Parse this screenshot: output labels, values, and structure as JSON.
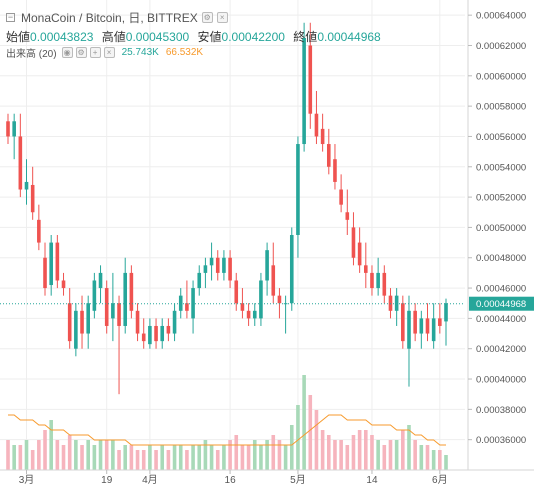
{
  "header": {
    "symbol": "MonaCoin / Bitcoin, 日, BITTREX",
    "minimize_glyph": "−",
    "toolbar_icons": [
      "settings-icon",
      "close-icon"
    ]
  },
  "ohlc": {
    "open_label": "始値",
    "open_value": "0.00043823",
    "high_label": "高値",
    "high_value": "0.00045300",
    "low_label": "安値",
    "low_value": "0.00042200",
    "close_label": "終値",
    "close_value": "0.00044968"
  },
  "volume_legend": {
    "label": "出来高 (20)",
    "value_volume": "25.743K",
    "value_ma": "66.532K",
    "buttons": [
      "eye-icon",
      "settings-icon",
      "plus-icon",
      "close-icon"
    ]
  },
  "price_axis": {
    "ticks": [
      "0.00064000",
      "0.00062000",
      "0.00060000",
      "0.00058000",
      "0.00056000",
      "0.00054000",
      "0.00052000",
      "0.00050000",
      "0.00048000",
      "0.00046000",
      "0.00044000",
      "0.00042000",
      "0.00040000",
      "0.00038000",
      "0.00036000"
    ],
    "current_price": "0.00044968"
  },
  "time_axis": {
    "ticks": [
      "3月",
      "19",
      "4月",
      "16",
      "5月",
      "14",
      "6月"
    ]
  },
  "colors": {
    "up": "#26a69a",
    "down": "#ef5350",
    "up_vol": "#a8d9b8",
    "down_vol": "#f6b4bd",
    "ma_line": "#f79a2c",
    "price_line": "#26a69a",
    "grid": "#eeeeee"
  },
  "chart_data": {
    "type": "candlestick",
    "price_range": [
      0.00034,
      0.00065
    ],
    "candles": [
      {
        "o": 0.00057,
        "h": 0.000575,
        "l": 0.000555,
        "c": 0.00056
      },
      {
        "o": 0.00056,
        "h": 0.000575,
        "l": 0.000545,
        "c": 0.00057
      },
      {
        "o": 0.00056,
        "h": 0.000575,
        "l": 0.00052,
        "c": 0.000525
      },
      {
        "o": 0.000525,
        "h": 0.000545,
        "l": 0.000515,
        "c": 0.00053
      },
      {
        "o": 0.000528,
        "h": 0.00054,
        "l": 0.000505,
        "c": 0.00051
      },
      {
        "o": 0.000505,
        "h": 0.000515,
        "l": 0.000485,
        "c": 0.00049
      },
      {
        "o": 0.00048,
        "h": 0.00049,
        "l": 0.000455,
        "c": 0.00046
      },
      {
        "o": 0.000462,
        "h": 0.000495,
        "l": 0.000455,
        "c": 0.00049
      },
      {
        "o": 0.00049,
        "h": 0.000495,
        "l": 0.00046,
        "c": 0.000465
      },
      {
        "o": 0.000465,
        "h": 0.00047,
        "l": 0.000455,
        "c": 0.00046
      },
      {
        "o": 0.00045,
        "h": 0.00046,
        "l": 0.00042,
        "c": 0.000425
      },
      {
        "o": 0.00042,
        "h": 0.00045,
        "l": 0.000415,
        "c": 0.000445
      },
      {
        "o": 0.000445,
        "h": 0.000455,
        "l": 0.00042,
        "c": 0.00043
      },
      {
        "o": 0.00043,
        "h": 0.000455,
        "l": 0.00042,
        "c": 0.00045
      },
      {
        "o": 0.000445,
        "h": 0.00047,
        "l": 0.00044,
        "c": 0.000465
      },
      {
        "o": 0.00046,
        "h": 0.000475,
        "l": 0.00045,
        "c": 0.00047
      },
      {
        "o": 0.00046,
        "h": 0.000465,
        "l": 0.00043,
        "c": 0.000435
      },
      {
        "o": 0.00044,
        "h": 0.00047,
        "l": 0.000425,
        "c": 0.00045
      },
      {
        "o": 0.00045,
        "h": 0.000455,
        "l": 0.00039,
        "c": 0.000435
      },
      {
        "o": 0.000435,
        "h": 0.00048,
        "l": 0.00043,
        "c": 0.00047
      },
      {
        "o": 0.00047,
        "h": 0.000475,
        "l": 0.00044,
        "c": 0.000445
      },
      {
        "o": 0.000445,
        "h": 0.00045,
        "l": 0.000425,
        "c": 0.00043
      },
      {
        "o": 0.00043,
        "h": 0.00044,
        "l": 0.00042,
        "c": 0.000425
      },
      {
        "o": 0.000423,
        "h": 0.00044,
        "l": 0.00042,
        "c": 0.000435
      },
      {
        "o": 0.000435,
        "h": 0.00044,
        "l": 0.00042,
        "c": 0.000425
      },
      {
        "o": 0.000425,
        "h": 0.00044,
        "l": 0.00042,
        "c": 0.000435
      },
      {
        "o": 0.000435,
        "h": 0.00044,
        "l": 0.000425,
        "c": 0.00043
      },
      {
        "o": 0.00043,
        "h": 0.00045,
        "l": 0.000425,
        "c": 0.000445
      },
      {
        "o": 0.000445,
        "h": 0.00046,
        "l": 0.00044,
        "c": 0.000455
      },
      {
        "o": 0.00045,
        "h": 0.000465,
        "l": 0.00044,
        "c": 0.000445
      },
      {
        "o": 0.00044,
        "h": 0.000465,
        "l": 0.00043,
        "c": 0.00046
      },
      {
        "o": 0.00046,
        "h": 0.000475,
        "l": 0.000455,
        "c": 0.00047
      },
      {
        "o": 0.00047,
        "h": 0.00048,
        "l": 0.00046,
        "c": 0.000475
      },
      {
        "o": 0.000475,
        "h": 0.00049,
        "l": 0.000465,
        "c": 0.00048
      },
      {
        "o": 0.00048,
        "h": 0.000485,
        "l": 0.000465,
        "c": 0.00047
      },
      {
        "o": 0.00047,
        "h": 0.000485,
        "l": 0.000465,
        "c": 0.00048
      },
      {
        "o": 0.00048,
        "h": 0.000485,
        "l": 0.00046,
        "c": 0.000465
      },
      {
        "o": 0.000465,
        "h": 0.00047,
        "l": 0.000445,
        "c": 0.00045
      },
      {
        "o": 0.00045,
        "h": 0.00046,
        "l": 0.00044,
        "c": 0.000445
      },
      {
        "o": 0.000445,
        "h": 0.00045,
        "l": 0.000435,
        "c": 0.00044
      },
      {
        "o": 0.00044,
        "h": 0.00045,
        "l": 0.000435,
        "c": 0.000445
      },
      {
        "o": 0.00044,
        "h": 0.00047,
        "l": 0.000435,
        "c": 0.000465
      },
      {
        "o": 0.000465,
        "h": 0.00049,
        "l": 0.000455,
        "c": 0.000485
      },
      {
        "o": 0.000475,
        "h": 0.00049,
        "l": 0.00045,
        "c": 0.000455
      },
      {
        "o": 0.000455,
        "h": 0.00046,
        "l": 0.00044,
        "c": 0.00045
      },
      {
        "o": 0.00045,
        "h": 0.000455,
        "l": 0.00043,
        "c": 0.00045
      },
      {
        "o": 0.00045,
        "h": 0.0005,
        "l": 0.000445,
        "c": 0.000495
      },
      {
        "o": 0.000495,
        "h": 0.00056,
        "l": 0.00048,
        "c": 0.000555
      },
      {
        "o": 0.000555,
        "h": 0.000635,
        "l": 0.00055,
        "c": 0.000625
      },
      {
        "o": 0.00062,
        "h": 0.000635,
        "l": 0.000565,
        "c": 0.000575
      },
      {
        "o": 0.000575,
        "h": 0.00059,
        "l": 0.000555,
        "c": 0.00056
      },
      {
        "o": 0.000565,
        "h": 0.000575,
        "l": 0.00055,
        "c": 0.000555
      },
      {
        "o": 0.000555,
        "h": 0.000565,
        "l": 0.000535,
        "c": 0.00054
      },
      {
        "o": 0.000545,
        "h": 0.000555,
        "l": 0.000525,
        "c": 0.00053
      },
      {
        "o": 0.000525,
        "h": 0.000535,
        "l": 0.00051,
        "c": 0.000515
      },
      {
        "o": 0.00051,
        "h": 0.000525,
        "l": 0.000495,
        "c": 0.000505
      },
      {
        "o": 0.0005,
        "h": 0.00051,
        "l": 0.000475,
        "c": 0.00048
      },
      {
        "o": 0.00049,
        "h": 0.0005,
        "l": 0.00047,
        "c": 0.000475
      },
      {
        "o": 0.000475,
        "h": 0.00049,
        "l": 0.00046,
        "c": 0.00047
      },
      {
        "o": 0.00047,
        "h": 0.000475,
        "l": 0.000455,
        "c": 0.00046
      },
      {
        "o": 0.00046,
        "h": 0.00048,
        "l": 0.000455,
        "c": 0.00047
      },
      {
        "o": 0.00047,
        "h": 0.000475,
        "l": 0.00045,
        "c": 0.000455
      },
      {
        "o": 0.000455,
        "h": 0.00046,
        "l": 0.00044,
        "c": 0.000445
      },
      {
        "o": 0.000445,
        "h": 0.00046,
        "l": 0.000435,
        "c": 0.000455
      },
      {
        "o": 0.00045,
        "h": 0.000455,
        "l": 0.00042,
        "c": 0.000425
      },
      {
        "o": 0.00042,
        "h": 0.000455,
        "l": 0.000395,
        "c": 0.000445
      },
      {
        "o": 0.000445,
        "h": 0.00045,
        "l": 0.000425,
        "c": 0.00043
      },
      {
        "o": 0.00043,
        "h": 0.000445,
        "l": 0.00042,
        "c": 0.00044
      },
      {
        "o": 0.00044,
        "h": 0.00045,
        "l": 0.000425,
        "c": 0.00043
      },
      {
        "o": 0.000425,
        "h": 0.00045,
        "l": 0.00042,
        "c": 0.00044
      },
      {
        "o": 0.00044,
        "h": 0.00045,
        "l": 0.00043,
        "c": 0.000435
      },
      {
        "o": 0.000438,
        "h": 0.000453,
        "l": 0.000422,
        "c": 0.00045
      }
    ],
    "volume": [
      6,
      5,
      5,
      6,
      4,
      6,
      8,
      10,
      6,
      5,
      7,
      6,
      5,
      6,
      5,
      6,
      6,
      6,
      4,
      5,
      5,
      4,
      4,
      5,
      4,
      5,
      4,
      5,
      5,
      4,
      5,
      5,
      6,
      5,
      4,
      5,
      6,
      7,
      5,
      5,
      6,
      5,
      6,
      7,
      6,
      5,
      9,
      13,
      19,
      15,
      12,
      8,
      7,
      6,
      6,
      5,
      7,
      8,
      8,
      7,
      6,
      5,
      6,
      6,
      8,
      9,
      6,
      5,
      5,
      4,
      4,
      3
    ],
    "ma_volume": [
      11,
      11,
      10,
      10,
      10,
      9,
      9,
      8,
      8,
      8,
      7,
      7,
      7,
      7,
      6,
      6,
      6,
      6,
      6,
      6,
      5,
      5,
      5,
      5,
      5,
      5,
      5,
      5,
      5,
      5,
      5,
      5,
      5,
      5,
      5,
      5,
      5,
      5,
      5,
      5,
      5,
      5,
      5,
      5,
      5,
      5,
      5,
      6,
      7,
      8,
      9,
      10,
      11,
      11,
      11,
      10,
      10,
      10,
      10,
      9,
      9,
      9,
      9,
      8,
      8,
      8,
      7,
      7,
      6,
      6,
      5,
      5
    ]
  }
}
